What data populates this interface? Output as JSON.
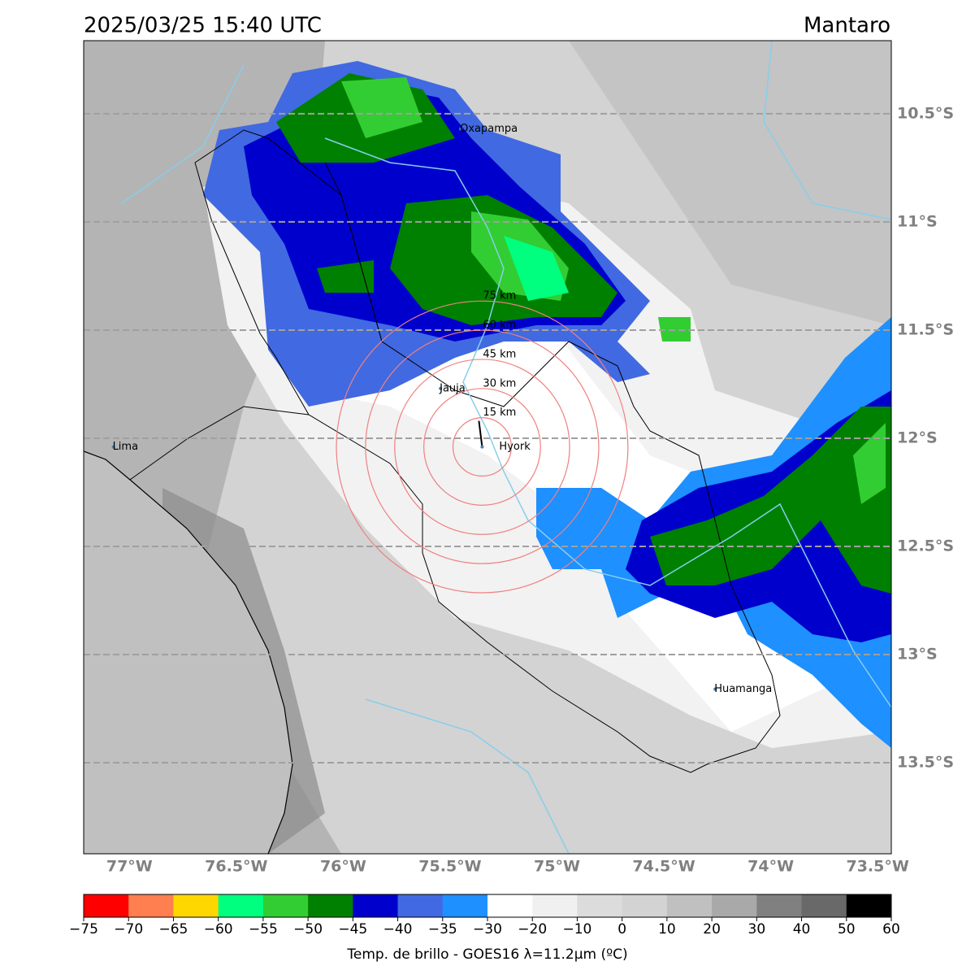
{
  "header": {
    "title": "2025/03/25 15:40 UTC",
    "region": "Mantaro"
  },
  "map": {
    "lon_extent": [
      -77.214,
      -73.436
    ],
    "lat_extent": [
      -10.162,
      -13.921
    ],
    "lat_lines": [
      {
        "value": -10.5,
        "label": "10.5°S"
      },
      {
        "value": -11,
        "label": "11°S"
      },
      {
        "value": -11.5,
        "label": "11.5°S"
      },
      {
        "value": -12,
        "label": "12°S"
      },
      {
        "value": -12.5,
        "label": "12.5°S"
      },
      {
        "value": -13,
        "label": "13°S"
      },
      {
        "value": -13.5,
        "label": "13.5°S"
      }
    ],
    "lon_labels": [
      {
        "value": -77,
        "label": "77°W"
      },
      {
        "value": -76.5,
        "label": "76.5°W"
      },
      {
        "value": -76,
        "label": "76°W"
      },
      {
        "value": -75.5,
        "label": "75.5°W"
      },
      {
        "value": -75,
        "label": "75°W"
      },
      {
        "value": -74.5,
        "label": "74.5°W"
      },
      {
        "value": -74,
        "label": "74°W"
      },
      {
        "value": -73.5,
        "label": "73.5°W"
      }
    ],
    "places": [
      {
        "name": "Oxapampa",
        "lon": -75.45,
        "lat": -10.57
      },
      {
        "name": "Jauja",
        "lon": -75.545,
        "lat": -11.77
      },
      {
        "name": "Hyork",
        "lon": -75.35,
        "lat": -12.04
      },
      {
        "name": "Lima",
        "lon": -77.075,
        "lat": -12.04
      },
      {
        "name": "Huamanga",
        "lon": -74.26,
        "lat": -13.16
      }
    ],
    "rings": [
      {
        "value": 15,
        "label": "15 km"
      },
      {
        "value": 30,
        "label": "30 km"
      },
      {
        "value": 45,
        "label": "45 km"
      },
      {
        "value": 60,
        "label": "60 km"
      },
      {
        "value": 75,
        "label": "75 km"
      }
    ]
  },
  "colorbar": {
    "ticks": [
      {
        "value": -75,
        "label": "−75"
      },
      {
        "value": -70,
        "label": "−70"
      },
      {
        "value": -65,
        "label": "−65"
      },
      {
        "value": -60,
        "label": "−60"
      },
      {
        "value": -55,
        "label": "−55"
      },
      {
        "value": -50,
        "label": "−50"
      },
      {
        "value": -45,
        "label": "−45"
      },
      {
        "value": -40,
        "label": "−40"
      },
      {
        "value": -35,
        "label": "−35"
      },
      {
        "value": -30,
        "label": "−30"
      },
      {
        "value": -20,
        "label": "−20"
      },
      {
        "value": -10,
        "label": "−10"
      },
      0,
      10,
      20,
      30,
      40,
      50,
      60
    ],
    "colors": [
      "#ff0000",
      "#ff7f50",
      "#ffd700",
      "#00ff7f",
      "#32cd32",
      "#008000",
      "#0000cd",
      "#4169e1",
      "#1e90ff",
      "#ffffff",
      "#f0f0f0",
      "#dcdcdc",
      "#d3d3d3",
      "#c0c0c0",
      "#a9a9a9",
      "#808080",
      "#696969",
      "#000000"
    ],
    "label": "Temp. de brillo - GOES16 λ=11.2μm (ºC)"
  }
}
